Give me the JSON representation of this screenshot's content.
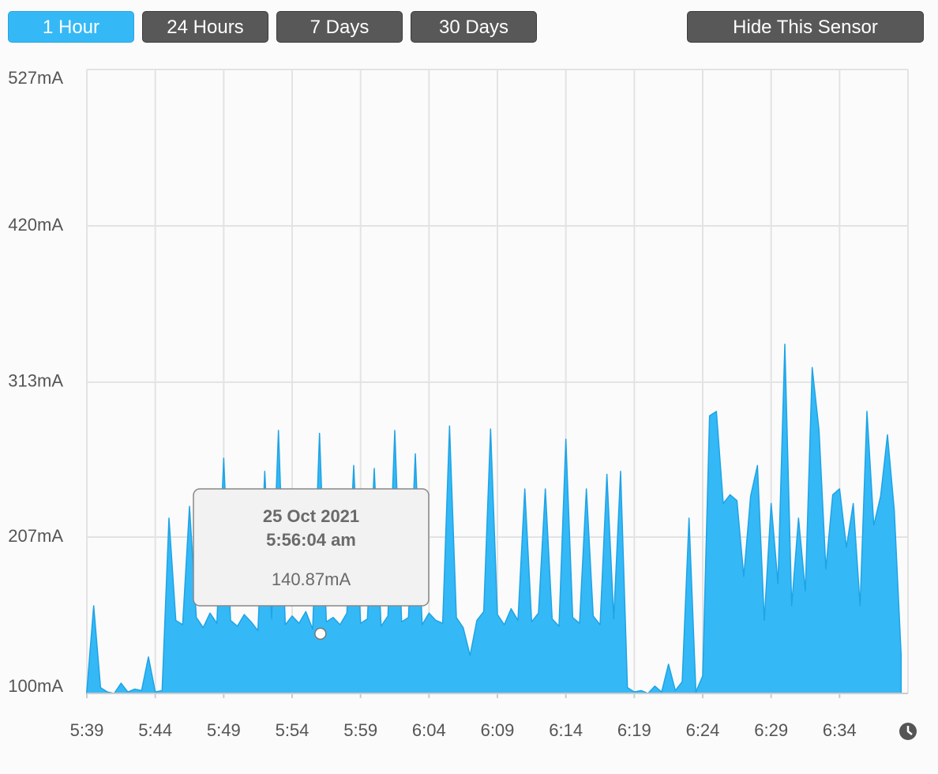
{
  "buttons": [
    {
      "label": "1 Hour",
      "active": true
    },
    {
      "label": "24 Hours",
      "active": false
    },
    {
      "label": "7 Days",
      "active": false
    },
    {
      "label": "30 Days",
      "active": false
    },
    {
      "label": "Hide This Sensor",
      "active": false
    }
  ],
  "chart_data": {
    "type": "area",
    "color": "#35b9f6",
    "grid": true,
    "xlim": [
      "5:39:00",
      "6:39:00"
    ],
    "xticks": [
      "5:39",
      "5:44",
      "5:49",
      "5:54",
      "5:59",
      "6:04",
      "6:09",
      "6:14",
      "6:19",
      "6:24",
      "6:29",
      "6:34"
    ],
    "ylim": [
      100,
      527
    ],
    "yticks": [
      {
        "value": 100,
        "label": "100mA"
      },
      {
        "value": 207,
        "label": "207mA"
      },
      {
        "value": 313,
        "label": "313mA"
      },
      {
        "value": 420,
        "label": "420mA"
      },
      {
        "value": 527,
        "label": "527mA"
      }
    ],
    "x": [
      "5:39:00",
      "5:39:30",
      "5:40:00",
      "5:40:30",
      "5:41:00",
      "5:41:30",
      "5:42:00",
      "5:42:30",
      "5:43:00",
      "5:43:30",
      "5:44:00",
      "5:44:30",
      "5:45:00",
      "5:45:30",
      "5:46:00",
      "5:46:30",
      "5:47:00",
      "5:47:30",
      "5:48:00",
      "5:48:30",
      "5:49:00",
      "5:49:30",
      "5:50:00",
      "5:50:30",
      "5:51:00",
      "5:51:30",
      "5:52:00",
      "5:52:30",
      "5:53:00",
      "5:53:30",
      "5:54:00",
      "5:54:30",
      "5:55:00",
      "5:55:30",
      "5:56:00",
      "5:56:30",
      "5:57:00",
      "5:57:30",
      "5:58:00",
      "5:58:30",
      "5:59:00",
      "5:59:30",
      "6:00:00",
      "6:00:30",
      "6:01:00",
      "6:01:30",
      "6:02:00",
      "6:02:30",
      "6:03:00",
      "6:03:30",
      "6:04:00",
      "6:04:30",
      "6:05:00",
      "6:05:30",
      "6:06:00",
      "6:06:30",
      "6:07:00",
      "6:07:30",
      "6:08:00",
      "6:08:30",
      "6:09:00",
      "6:09:30",
      "6:10:00",
      "6:10:30",
      "6:11:00",
      "6:11:30",
      "6:12:00",
      "6:12:30",
      "6:13:00",
      "6:13:30",
      "6:14:00",
      "6:14:30",
      "6:15:00",
      "6:15:30",
      "6:16:00",
      "6:16:30",
      "6:17:00",
      "6:17:30",
      "6:18:00",
      "6:18:30",
      "6:19:00",
      "6:19:30",
      "6:20:00",
      "6:20:30",
      "6:21:00",
      "6:21:30",
      "6:22:00",
      "6:22:30",
      "6:23:00",
      "6:23:30",
      "6:24:00",
      "6:24:30",
      "6:25:00",
      "6:25:30",
      "6:26:00",
      "6:26:30",
      "6:27:00",
      "6:27:30",
      "6:28:00",
      "6:28:30",
      "6:29:00",
      "6:29:30",
      "6:30:00",
      "6:30:30",
      "6:31:00",
      "6:31:30",
      "6:32:00",
      "6:32:30",
      "6:33:00",
      "6:33:30",
      "6:34:00",
      "6:34:30",
      "6:35:00",
      "6:35:30",
      "6:36:00",
      "6:36:30",
      "6:37:00",
      "6:37:30",
      "6:38:00",
      "6:38:30"
    ],
    "values": [
      102,
      160,
      104,
      101,
      100,
      107,
      101,
      103,
      102,
      125,
      101,
      102,
      220,
      150,
      147,
      228,
      152,
      145,
      155,
      148,
      261,
      150,
      146,
      154,
      149,
      143,
      252,
      151,
      280,
      147,
      153,
      148,
      156,
      144,
      278,
      149,
      152,
      147,
      155,
      256,
      148,
      151,
      254,
      146,
      153,
      280,
      149,
      152,
      264,
      147,
      155,
      150,
      148,
      283,
      152,
      145,
      126,
      150,
      156,
      281,
      154,
      147,
      158,
      150,
      240,
      149,
      155,
      240,
      151,
      146,
      274,
      152,
      148,
      240,
      153,
      147,
      250,
      151,
      252,
      104,
      101,
      102,
      100,
      105,
      101,
      120,
      102,
      108,
      220,
      101,
      112,
      290,
      293,
      230,
      236,
      232,
      180,
      235,
      256,
      150,
      230,
      175,
      339,
      160,
      220,
      170,
      323,
      280,
      185,
      236,
      240,
      200,
      230,
      160,
      293,
      215,
      235,
      277,
      225,
      126
    ],
    "tooltip": {
      "date": "25 Oct 2021",
      "time": "5:56:04 am",
      "value": 140.87,
      "value_label": "140.87mA"
    }
  }
}
